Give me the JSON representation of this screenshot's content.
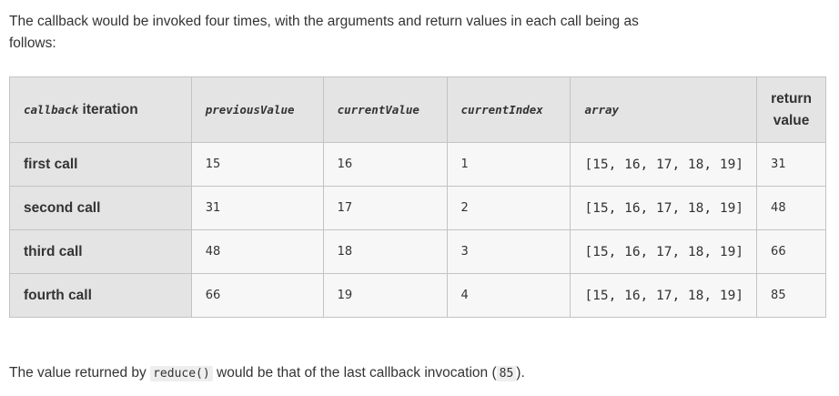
{
  "intro": "The callback would be invoked four times, with the arguments and return values in each call being as follows:",
  "table": {
    "headers": {
      "iteration_code": "callback",
      "iteration_text": " iteration",
      "previous": "previousValue",
      "current": "currentValue",
      "index": "currentIndex",
      "array": "array",
      "return_line1": "return",
      "return_line2": "value"
    },
    "rows": [
      {
        "label": "first call",
        "previous": "15",
        "current": "16",
        "index": "1",
        "array": "[15, 16, 17, 18, 19]",
        "ret": "31"
      },
      {
        "label": "second call",
        "previous": "31",
        "current": "17",
        "index": "2",
        "array": "[15, 16, 17, 18, 19]",
        "ret": "48"
      },
      {
        "label": "third call",
        "previous": "48",
        "current": "18",
        "index": "3",
        "array": "[15, 16, 17, 18, 19]",
        "ret": "66"
      },
      {
        "label": "fourth call",
        "previous": "66",
        "current": "19",
        "index": "4",
        "array": "[15, 16, 17, 18, 19]",
        "ret": "85"
      }
    ]
  },
  "outro": {
    "before": "The value returned by ",
    "code": "reduce()",
    "middle": " would be that of the last callback invocation (",
    "value": "85",
    "after": ")."
  }
}
